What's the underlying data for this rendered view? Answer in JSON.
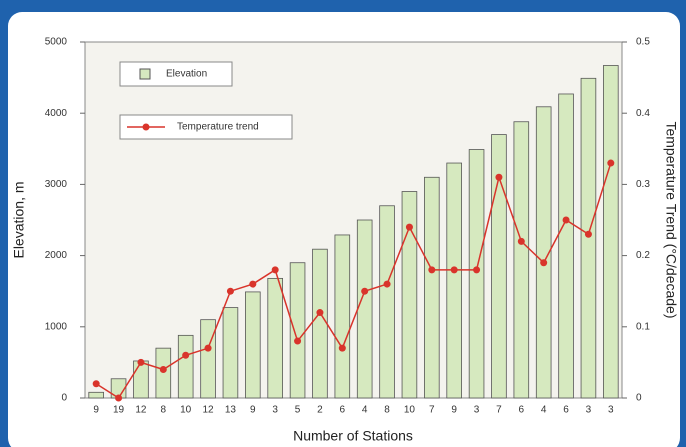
{
  "chart_data": {
    "type": "bar_line",
    "categories": [
      "9",
      "19",
      "12",
      "8",
      "10",
      "12",
      "13",
      "9",
      "3",
      "5",
      "2",
      "6",
      "4",
      "8",
      "10",
      "7",
      "9",
      "3",
      "7",
      "6",
      "4",
      "6",
      "3",
      "3"
    ],
    "series": [
      {
        "name": "Elevation",
        "type": "bar",
        "color": "#d6e9bf",
        "values": [
          80,
          270,
          520,
          700,
          880,
          1100,
          1270,
          1490,
          1680,
          1900,
          2090,
          2290,
          2500,
          2700,
          2900,
          3100,
          3300,
          3490,
          3700,
          3880,
          4090,
          4270,
          4490,
          4670
        ]
      },
      {
        "name": "Temperature trend",
        "type": "line",
        "axis": "y2",
        "color": "#d9342b",
        "values": [
          0.02,
          0.0,
          0.05,
          0.04,
          0.06,
          0.07,
          0.15,
          0.16,
          0.18,
          0.08,
          0.12,
          0.07,
          0.15,
          0.16,
          0.24,
          0.18,
          0.18,
          0.18,
          0.31,
          0.22,
          0.19,
          0.25,
          0.23,
          0.33
        ]
      }
    ],
    "x_label": "Number of Stations",
    "y_label": "Elevation, m",
    "y2_label": "Temperature Trend (°C/decade)",
    "ylim": [
      0,
      5000
    ],
    "yticks": [
      0,
      1000,
      2000,
      3000,
      4000,
      5000
    ],
    "y2lim": [
      0,
      0.5
    ],
    "y2ticks": [
      0,
      0.1,
      0.2,
      0.3,
      0.4,
      0.5
    ]
  }
}
